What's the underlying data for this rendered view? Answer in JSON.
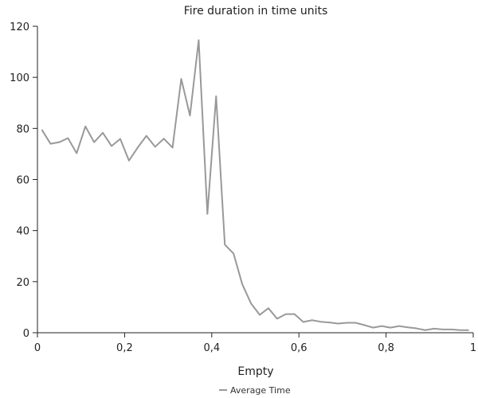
{
  "chart_data": {
    "type": "line",
    "title": "Fire duration in time units",
    "xlabel": "Empty",
    "ylabel": "",
    "xlim": [
      0,
      1
    ],
    "ylim": [
      0,
      120
    ],
    "x_ticks": [
      0,
      0.2,
      0.4,
      0.6,
      0.8,
      1
    ],
    "x_tick_labels": [
      "0",
      "0,2",
      "0,4",
      "0,6",
      "0,8",
      "1"
    ],
    "y_ticks": [
      0,
      20,
      40,
      60,
      80,
      100,
      120
    ],
    "y_tick_labels": [
      "0",
      "20",
      "40",
      "60",
      "80",
      "100",
      "120"
    ],
    "grid": false,
    "legend": "bottom-center",
    "series": [
      {
        "name": "Average Time",
        "color": "#999999",
        "x": [
          0.01,
          0.03,
          0.05,
          0.07,
          0.09,
          0.11,
          0.13,
          0.15,
          0.17,
          0.19,
          0.21,
          0.23,
          0.25,
          0.27,
          0.29,
          0.31,
          0.33,
          0.35,
          0.37,
          0.39,
          0.41,
          0.43,
          0.45,
          0.47,
          0.49,
          0.51,
          0.53,
          0.55,
          0.57,
          0.59,
          0.61,
          0.63,
          0.65,
          0.67,
          0.69,
          0.71,
          0.73,
          0.75,
          0.77,
          0.79,
          0.81,
          0.83,
          0.85,
          0.87,
          0.89,
          0.91,
          0.93,
          0.95,
          0.97,
          0.99
        ],
        "values": [
          79.5,
          74,
          74.6,
          76.2,
          70.3,
          80.8,
          74.6,
          78.3,
          73.1,
          75.9,
          67.4,
          72.5,
          77.1,
          72.8,
          76,
          72.5,
          99.4,
          85,
          114.6,
          46.5,
          92.6,
          34.5,
          31,
          19,
          11.5,
          7,
          9.6,
          5.5,
          7.3,
          7.3,
          4.2,
          4.9,
          4.3,
          4,
          3.6,
          3.9,
          3.9,
          3,
          2,
          2.6,
          2,
          2.6,
          2.1,
          1.7,
          1,
          1.6,
          1.3,
          1.3,
          1,
          1
        ]
      }
    ]
  }
}
